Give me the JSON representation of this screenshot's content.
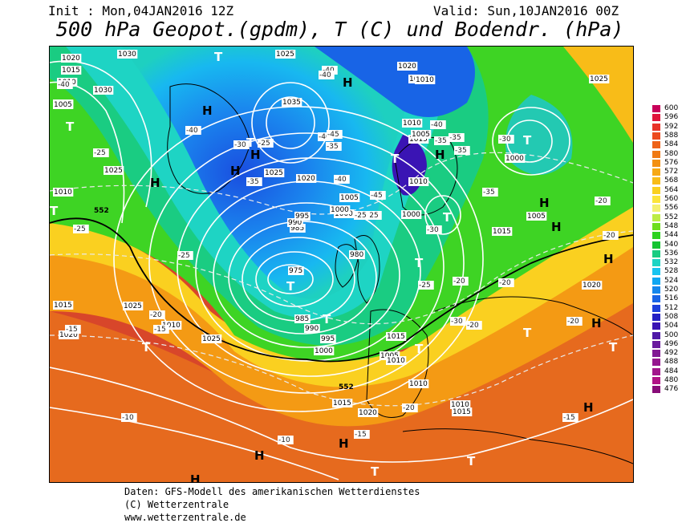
{
  "header": {
    "init": "Init : Mon,04JAN2016 12Z",
    "valid": "Valid: Sun,10JAN2016 00Z",
    "title": "500 hPa Geopot.(gpdm), T (C) und Bodendr. (hPa)"
  },
  "legend": {
    "values": [
      "600",
      "596",
      "592",
      "588",
      "584",
      "580",
      "576",
      "572",
      "568",
      "564",
      "560",
      "556",
      "552",
      "548",
      "544",
      "540",
      "536",
      "532",
      "528",
      "524",
      "520",
      "516",
      "512",
      "508",
      "504",
      "500",
      "496",
      "492",
      "488",
      "484",
      "480",
      "476"
    ],
    "colors": [
      "#c8005a",
      "#e0143c",
      "#e83228",
      "#ec4a1e",
      "#ee6218",
      "#f07a14",
      "#f39012",
      "#f6a814",
      "#f8bc18",
      "#fad020",
      "#fce43a",
      "#f4f070",
      "#bcec44",
      "#6ede1e",
      "#2cd21e",
      "#16c432",
      "#1acc82",
      "#1ed4c4",
      "#18c4f0",
      "#0ea6f2",
      "#1486ec",
      "#1864e6",
      "#1c40dc",
      "#2420c4",
      "#3a14b4",
      "#501aa8",
      "#6a1a9e",
      "#821894",
      "#961890",
      "#a2168c",
      "#b01286",
      "#880c78"
    ]
  },
  "map": {
    "highs": [
      {
        "label": "H"
      },
      {
        "label": "H"
      },
      {
        "label": "H"
      },
      {
        "label": "H"
      },
      {
        "label": "H"
      },
      {
        "label": "H"
      },
      {
        "label": "H"
      },
      {
        "label": "H"
      },
      {
        "label": "H"
      },
      {
        "label": "H"
      },
      {
        "label": "H"
      },
      {
        "label": "H"
      },
      {
        "label": "H"
      },
      {
        "label": "H"
      }
    ],
    "lows": [
      {
        "label": "T"
      },
      {
        "label": "T"
      },
      {
        "label": "T"
      },
      {
        "label": "T"
      },
      {
        "label": "T"
      },
      {
        "label": "T"
      },
      {
        "label": "T"
      },
      {
        "label": "T"
      },
      {
        "label": "T"
      },
      {
        "label": "T"
      },
      {
        "label": "T"
      },
      {
        "label": "T"
      },
      {
        "label": "T"
      },
      {
        "label": "T"
      },
      {
        "label": "T"
      },
      {
        "label": "T"
      }
    ],
    "pressure_labels": [
      "1020",
      "1015",
      "1010",
      "1030",
      "1025",
      "1005",
      "1030",
      "1035",
      "1025",
      "1020",
      "1025",
      "1020",
      "1015",
      "1010",
      "1000",
      "1005",
      "1010",
      "1000",
      "975",
      "980",
      "985",
      "990",
      "995",
      "980",
      "985",
      "990",
      "995",
      "1000",
      "1005",
      "1010",
      "1015",
      "1020",
      "1015",
      "1010",
      "1005",
      "1010",
      "1015",
      "1020",
      "1025",
      "1010",
      "1005",
      "1000",
      "1015",
      "1020",
      "1005",
      "1000",
      "1010",
      "1015",
      "1020",
      "1025",
      "1010",
      "1025"
    ],
    "temp_labels": [
      "-40",
      "-40",
      "-40",
      "-40",
      "-45",
      "-35",
      "-35",
      "-40",
      "-45",
      "-30",
      "-35",
      "-40",
      "-40",
      "-25",
      "-35",
      "-35",
      "-30",
      "-35",
      "-25",
      "-30",
      "-25",
      "-25",
      "-25",
      "-25",
      "-20",
      "-20",
      "-20",
      "-15",
      "-15",
      "-20",
      "-20",
      "-15",
      "-10",
      "-10",
      "-15",
      "-20",
      "-20",
      "-20",
      "-25",
      "-30"
    ],
    "isohypse_labels": [
      "552",
      "552"
    ]
  },
  "footer": {
    "line1": "Daten: GFS-Modell des amerikanischen Wetterdienstes",
    "line2": "(C) Wetterzentrale",
    "line3": "www.wetterzentrale.de"
  }
}
